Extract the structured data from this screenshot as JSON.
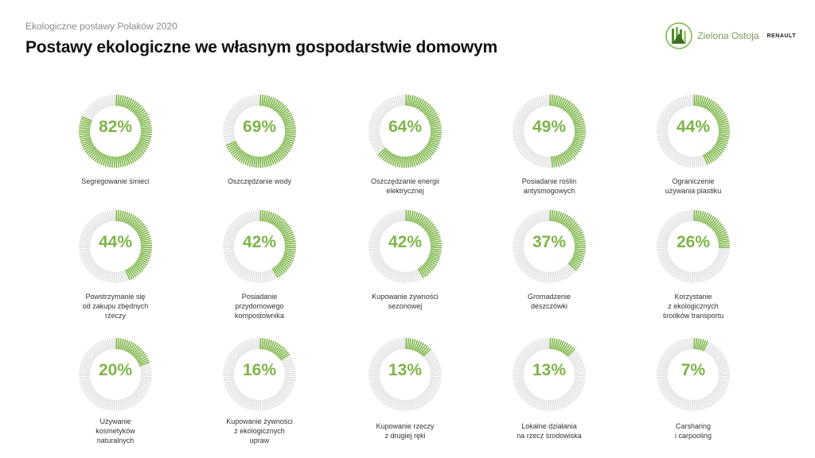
{
  "header": {
    "supertitle": "Ekologiczne postawy Polaków 2020",
    "title": "Postawy ekologiczne we własnym gospodarstwie domowym"
  },
  "logo": {
    "text": "Zielona Ostoja",
    "brand": "RENAULT",
    "icon": "forest-leaf-icon"
  },
  "colors": {
    "accent": "#7db548",
    "track": "#e3e3e3"
  },
  "chart_data": {
    "type": "donut",
    "unit": "%",
    "items": [
      {
        "label": "Segregowanie śmieci",
        "value": 82
      },
      {
        "label": "Oszczędzanie wody",
        "value": 69
      },
      {
        "label": "Oszczędzanie energii\nelektrycznej",
        "value": 64
      },
      {
        "label": "Posiadanie roślin\nantysmogowych",
        "value": 49
      },
      {
        "label": "Ograniczenie\nużywania plastiku",
        "value": 44
      },
      {
        "label": "Powstrzymanie się\nod zakupu zbędnych\nrzeczy",
        "value": 44
      },
      {
        "label": "Posiadanie\nprzydomowego\nkompostownika",
        "value": 42
      },
      {
        "label": "Kupowanie żywności\nsezonowej",
        "value": 42
      },
      {
        "label": "Gromadzenie\ndeszczówki",
        "value": 37
      },
      {
        "label": "Korzystanie\nz ekologicznych\nśrodków transportu",
        "value": 26
      },
      {
        "label": "Używanie\nkosmetyków\nnaturalnych",
        "value": 20
      },
      {
        "label": "Kupowanie żywności\nz ekologicznych\nupraw",
        "value": 16
      },
      {
        "label": "Kupowanie rzeczy\nz drugiej ręki",
        "value": 13
      },
      {
        "label": "Lokalne działania\nna rzecz środowiska",
        "value": 13
      },
      {
        "label": "Carsharing\ni carpooling",
        "value": 7
      }
    ]
  }
}
